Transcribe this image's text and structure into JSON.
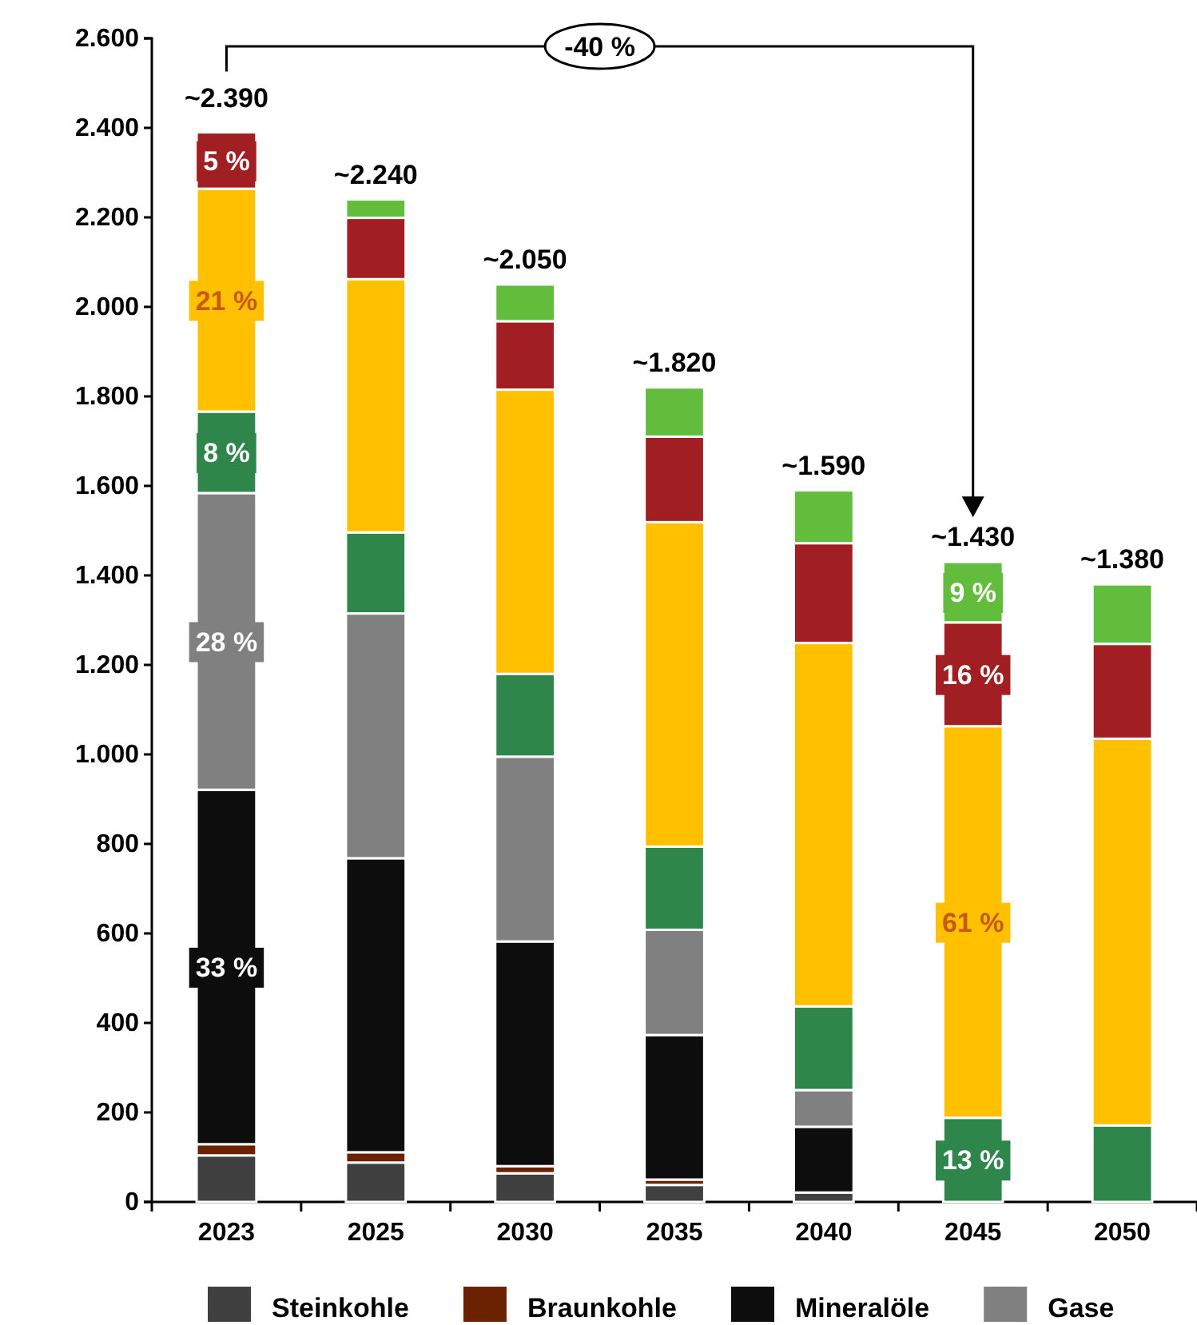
{
  "chart_data": {
    "type": "bar",
    "stacked": true,
    "categories": [
      "2023",
      "2025",
      "2030",
      "2035",
      "2040",
      "2045",
      "2050"
    ],
    "series": [
      {
        "name": "Steinkohle",
        "color": "#404040",
        "values": [
          104,
          88,
          64,
          38,
          21,
          0,
          0
        ]
      },
      {
        "name": "Braunkohle",
        "color": "#6b2200",
        "values": [
          25,
          23,
          16,
          12,
          0,
          0,
          0
        ]
      },
      {
        "name": "Mineralöle",
        "color": "#0d0d0d",
        "values": [
          792,
          657,
          502,
          323,
          147,
          0,
          0
        ]
      },
      {
        "name": "Gase",
        "color": "#808080",
        "values": [
          663,
          547,
          413,
          235,
          82,
          0,
          0
        ]
      },
      {
        "color": "#2e864a",
        "values": [
          182,
          181,
          185,
          186,
          187,
          188,
          171
        ]
      },
      {
        "color": "#ffc000",
        "values": [
          498,
          566,
          635,
          725,
          812,
          875,
          864
        ]
      },
      {
        "color": "#a11f22",
        "values": [
          126,
          137,
          153,
          191,
          223,
          232,
          212
        ]
      },
      {
        "color": "#62bd3d",
        "values": [
          0,
          41,
          82,
          110,
          118,
          135,
          133
        ]
      }
    ],
    "totals": [
      "~2.390",
      "~2.240",
      "~2.050",
      "~1.820",
      "~1.590",
      "~1.430",
      "~1.380"
    ],
    "ylim": [
      0,
      2600
    ],
    "yticks": [
      {
        "value": 0,
        "label": "0"
      },
      {
        "value": 200,
        "label": "200"
      },
      {
        "value": 400,
        "label": "400"
      },
      {
        "value": 600,
        "label": "600"
      },
      {
        "value": 800,
        "label": "800"
      },
      {
        "value": 1000,
        "label": "1.000"
      },
      {
        "value": 1200,
        "label": "1.200"
      },
      {
        "value": 1400,
        "label": "1.400"
      },
      {
        "value": 1600,
        "label": "1.600"
      },
      {
        "value": 1800,
        "label": "1.800"
      },
      {
        "value": 2000,
        "label": "2.000"
      },
      {
        "value": 2200,
        "label": "2.200"
      },
      {
        "value": 2400,
        "label": "2.400"
      },
      {
        "value": 2600,
        "label": "2.600"
      }
    ],
    "annotations": [
      "-40 %",
      "33 %",
      "28 %",
      "8 %",
      "21 %",
      "5 %",
      "13 %",
      "61 %",
      "16 %",
      "9 %"
    ],
    "grid": false,
    "legend": "bottom"
  }
}
